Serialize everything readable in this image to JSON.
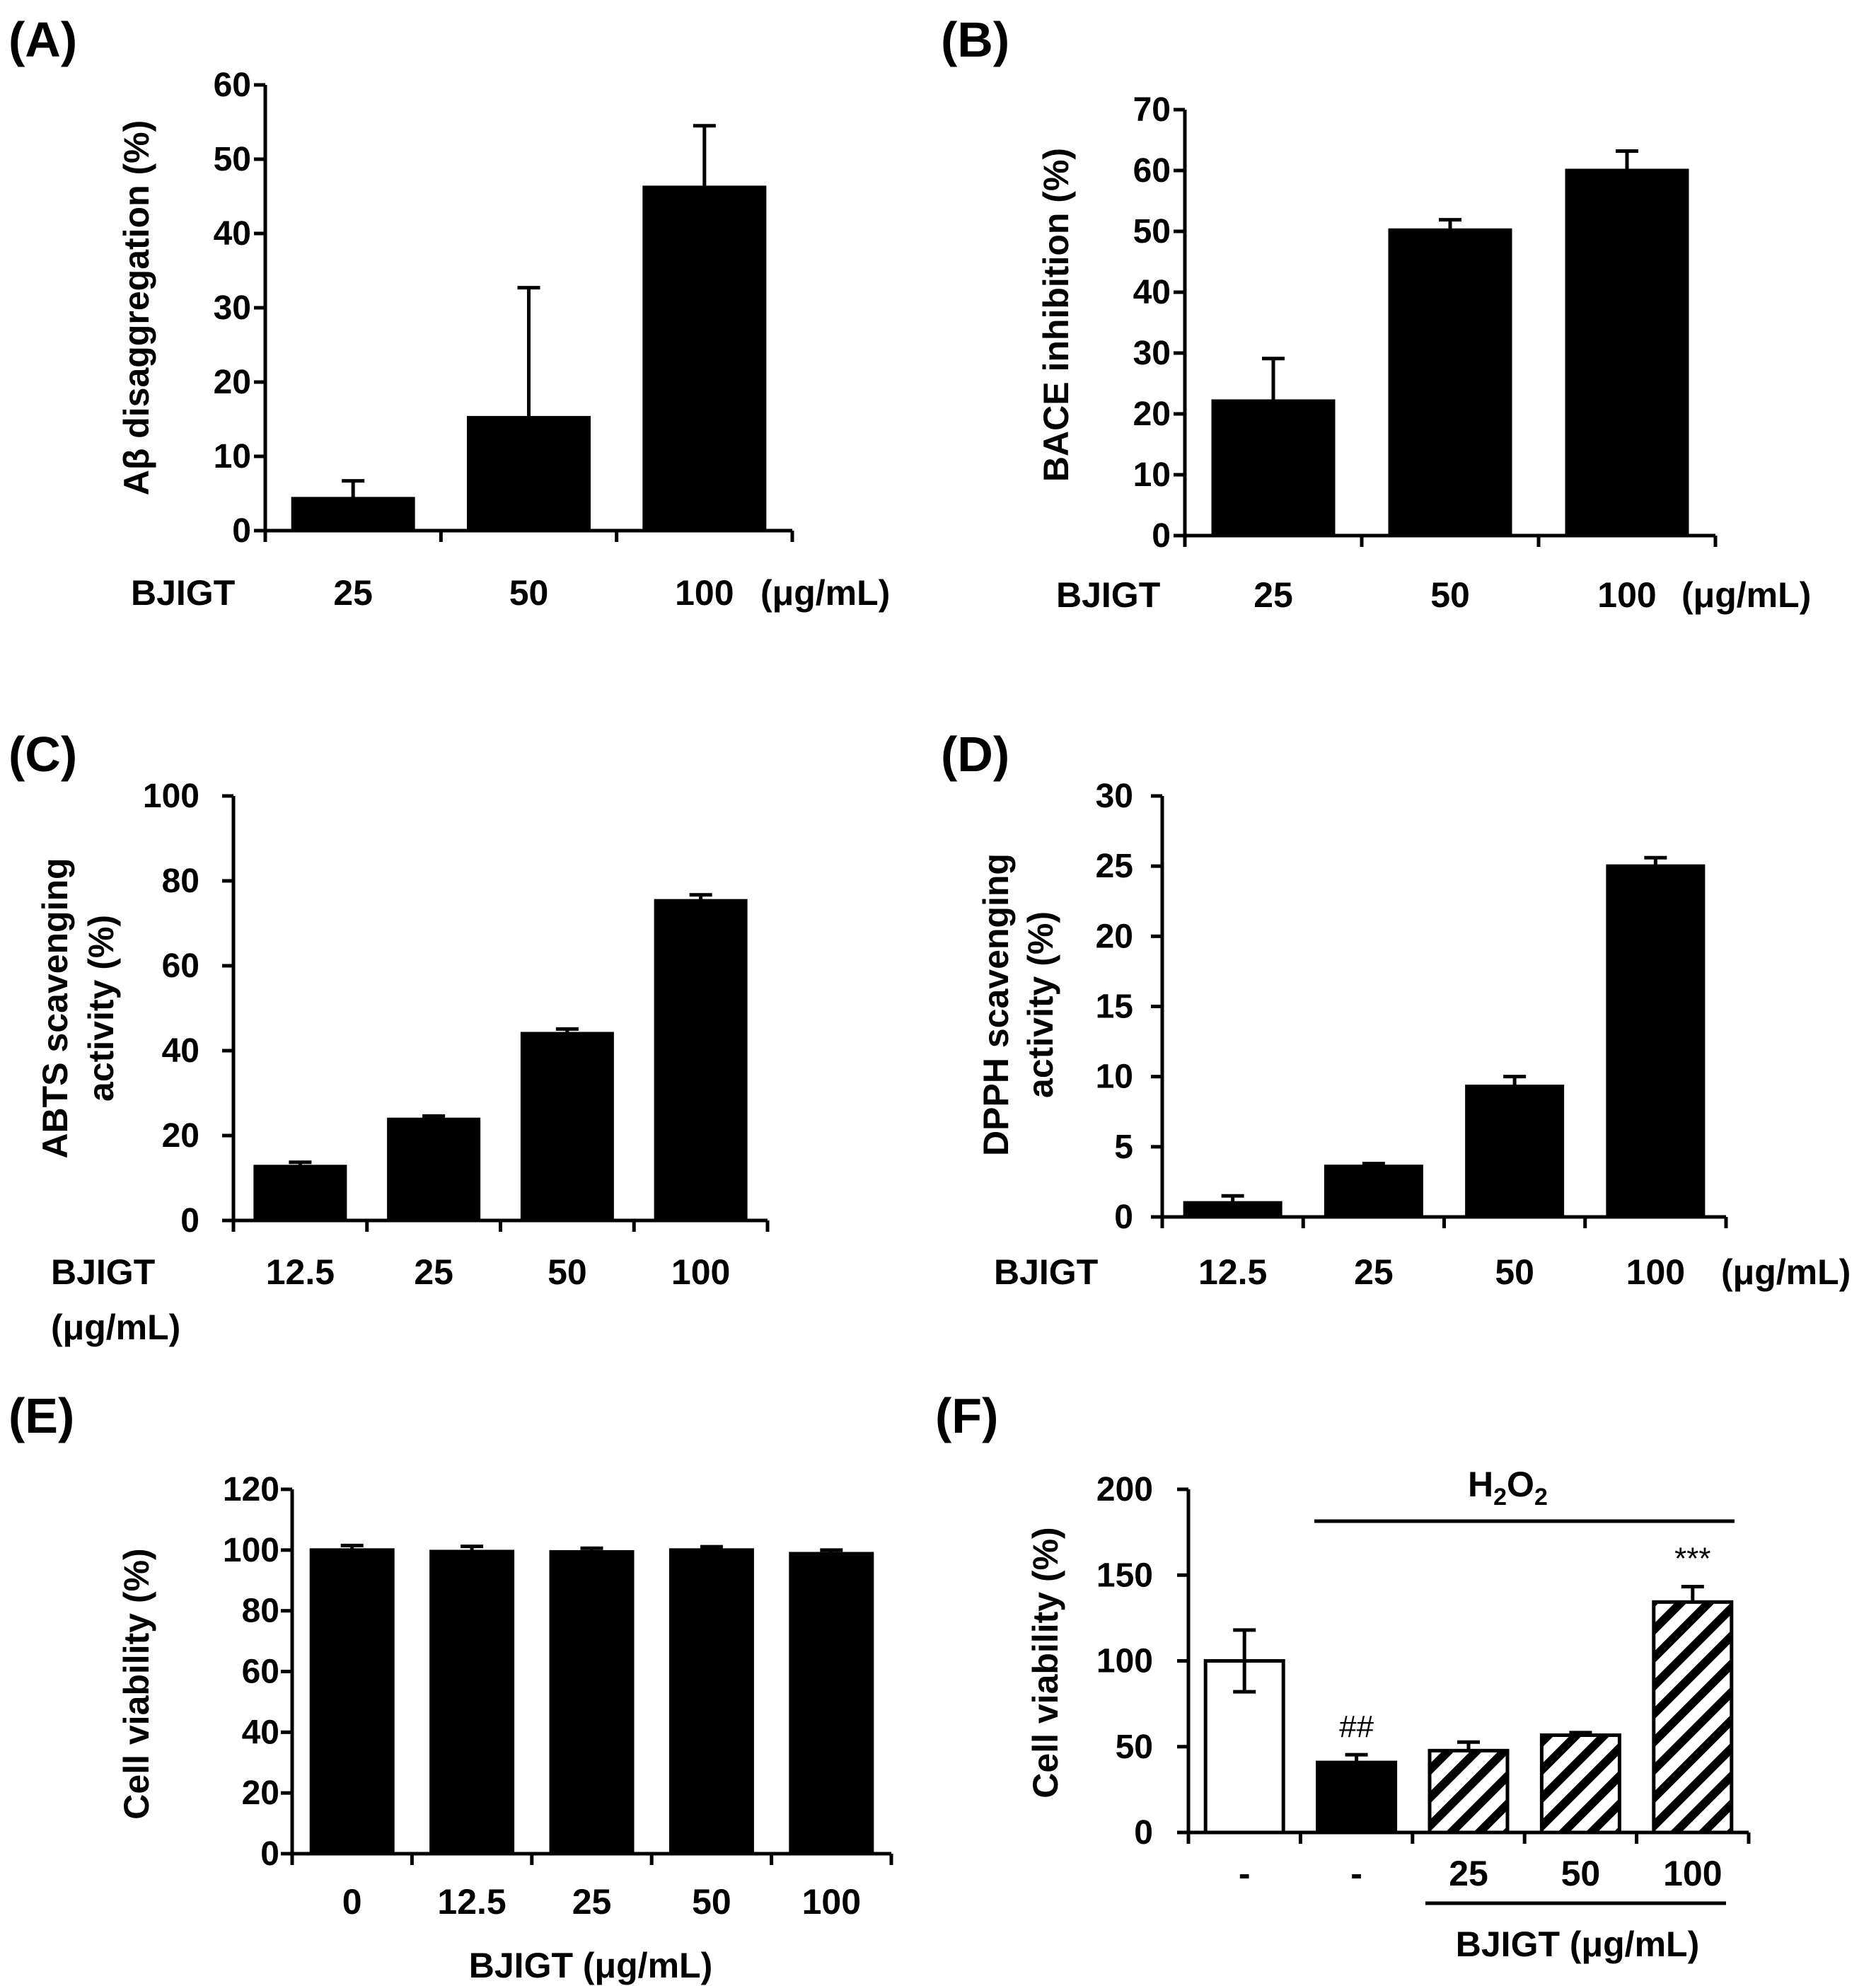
{
  "chart_data": [
    {
      "panel": "(A)",
      "type": "bar",
      "ylabel": "Aβ disaggregation (%)",
      "ylim": [
        0,
        60
      ],
      "yticks": [
        0,
        10,
        20,
        30,
        40,
        50,
        60
      ],
      "prefix": "BJIGT",
      "unit": "(μg/mL)",
      "categories": [
        "25",
        "50",
        "100"
      ],
      "values": [
        4.3,
        15.2,
        46.2
      ],
      "errors": [
        2.4,
        17.5,
        8.3
      ]
    },
    {
      "panel": "(B)",
      "type": "bar",
      "ylabel": "BACE inhibition (%)",
      "ylim": [
        0,
        70
      ],
      "yticks": [
        0,
        10,
        20,
        30,
        40,
        50,
        60,
        70
      ],
      "prefix": "BJIGT",
      "unit": "(μg/mL)",
      "categories": [
        "25",
        "50",
        "100"
      ],
      "values": [
        22.1,
        50.2,
        60.0
      ],
      "errors": [
        7.0,
        1.7,
        3.2
      ]
    },
    {
      "panel": "(C)",
      "type": "bar",
      "ylabel": [
        "ABTS scavenging",
        "activity (%)"
      ],
      "ylim": [
        0,
        100
      ],
      "yticks": [
        0,
        20,
        40,
        60,
        80,
        100
      ],
      "prefix": "BJIGT",
      "unit": "(μg/mL)",
      "categories": [
        "12.5",
        "25",
        "50",
        "100"
      ],
      "values": [
        12.7,
        23.8,
        44.0,
        75.3
      ],
      "errors": [
        1.0,
        0.8,
        1.1,
        1.4
      ]
    },
    {
      "panel": "(D)",
      "type": "bar",
      "ylabel": [
        "DPPH scavenging",
        "activity (%)"
      ],
      "ylim": [
        0,
        30
      ],
      "yticks": [
        0,
        5,
        10,
        15,
        20,
        25,
        30
      ],
      "prefix": "BJIGT",
      "unit": "(μg/mL)",
      "categories": [
        "12.5",
        "25",
        "50",
        "100"
      ],
      "values": [
        1.0,
        3.6,
        9.3,
        25.0
      ],
      "errors": [
        0.5,
        0.2,
        0.7,
        0.6
      ]
    },
    {
      "panel": "(E)",
      "type": "bar",
      "ylabel": "Cell viability (%)",
      "ylim": [
        0,
        120
      ],
      "yticks": [
        0,
        20,
        40,
        60,
        80,
        100,
        120
      ],
      "xlabel": "BJIGT (μg/mL)",
      "categories": [
        "0",
        "12.5",
        "25",
        "50",
        "100"
      ],
      "values": [
        100.0,
        99.5,
        99.4,
        100.0,
        98.8
      ],
      "errors": [
        1.5,
        1.7,
        1.2,
        1.1,
        1.2
      ]
    },
    {
      "panel": "(F)",
      "type": "bar",
      "ylabel": "Cell viability (%)",
      "ylim": [
        0,
        200
      ],
      "yticks": [
        0,
        50,
        100,
        150,
        200
      ],
      "treatment_label": {
        "main": "H",
        "sub1": "2",
        "mid": "O",
        "sub2": "2"
      },
      "xlabel": "BJIGT (μg/mL)",
      "categories": [
        "-",
        "-",
        "25",
        "50",
        "100"
      ],
      "values": [
        100.0,
        40.8,
        47.7,
        56.7,
        134.3
      ],
      "errors": [
        18.0,
        4.5,
        5.0,
        1.5,
        9.0
      ],
      "fills": [
        "white",
        "black",
        "hatch",
        "hatch",
        "hatch"
      ],
      "annotations": [
        "",
        "##",
        "",
        "",
        "***"
      ]
    }
  ]
}
